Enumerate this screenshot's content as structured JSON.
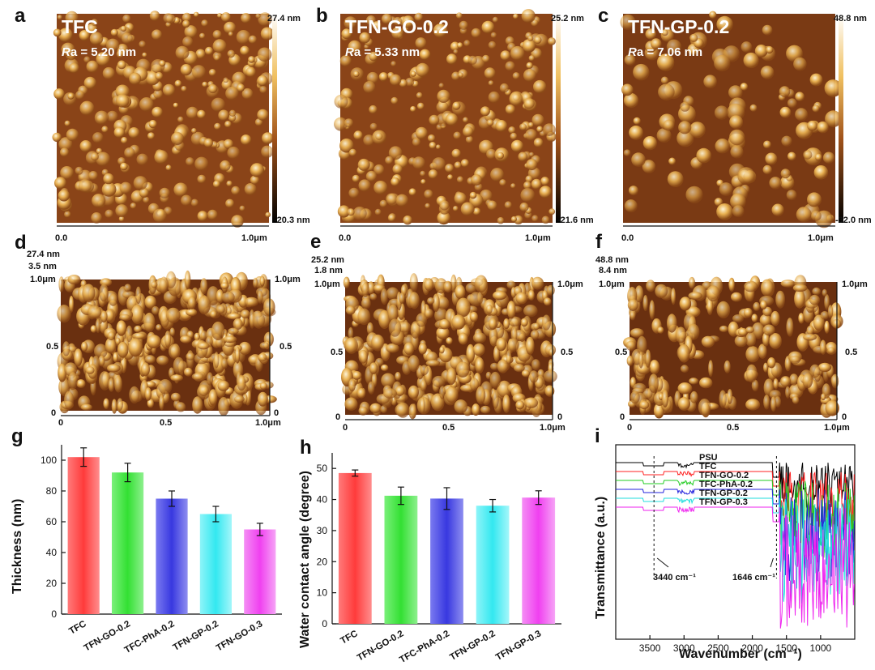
{
  "afm_2d": [
    {
      "letter": "a",
      "title": "TFC",
      "ra_prefix": "R",
      "ra_rest": "a = 5.20 nm",
      "cbar_max": "27.4 nm",
      "cbar_min": "-20.3 nm",
      "x_start": "0.0",
      "x_end": "1.0μm"
    },
    {
      "letter": "b",
      "title": "TFN-GO-0.2",
      "ra_prefix": "R",
      "ra_rest": "a = 5.33 nm",
      "cbar_max": "25.2 nm",
      "cbar_min": "-21.6 nm",
      "x_start": "0.0",
      "x_end": "1.0μm"
    },
    {
      "letter": "c",
      "title": "TFN-GP-0.2",
      "ra_prefix": "R",
      "ra_rest": "a = 7.06 nm",
      "cbar_max": "48.8 nm",
      "cbar_min": "-32.0 nm",
      "x_start": "0.0",
      "x_end": "1.0μm"
    }
  ],
  "afm_3d": [
    {
      "letter": "d",
      "z_max": "27.4 nm",
      "z_mid": "3.5 nm",
      "y_top": "1.0μm",
      "y_mid": "0.5",
      "y_zero": "0",
      "x_ticks": [
        "0",
        "0.5",
        "1.0μm"
      ],
      "r_top": "1.0μm",
      "r_mid": "0.5",
      "r_zero": "0"
    },
    {
      "letter": "e",
      "z_max": "25.2 nm",
      "z_mid": "1.8 nm",
      "y_top": "1.0μm",
      "y_mid": "0.5",
      "y_zero": "0",
      "x_ticks": [
        "0",
        "0.5",
        "1.0μm"
      ],
      "r_top": "1.0μm",
      "r_mid": "0.5",
      "r_zero": "0"
    },
    {
      "letter": "f",
      "z_max": "48.8 nm",
      "z_mid": "8.4 nm",
      "y_top": "1.0μm",
      "y_mid": "0.5",
      "y_zero": "0",
      "x_ticks": [
        "0",
        "0.5",
        "1.0μm"
      ],
      "r_top": "1.0μm",
      "r_mid": "0.5",
      "r_zero": "0"
    }
  ],
  "colors": {
    "afm_dark": "#2a1205",
    "afm_mid": "#a0521a",
    "afm_light": "#f0c060",
    "afm_peak": "#fff6d8",
    "bar_red": "#ff3b3b",
    "bar_green": "#33e033",
    "bar_blue": "#3838e0",
    "bar_cyan": "#33e8f0",
    "bar_magenta": "#f040f0"
  },
  "chart_data": [
    {
      "panel": "g",
      "type": "bar",
      "categories": [
        "TFC",
        "TFN-GO-0.2",
        "TFC-PhA-0.2",
        "TFN-GP-0.2",
        "TFN-GO-0.3"
      ],
      "values": [
        102,
        92,
        75,
        65,
        55
      ],
      "errors": [
        6,
        6,
        5,
        5,
        4
      ],
      "ylabel": "Thickness (nm)",
      "xlabel": "",
      "ylim": [
        0,
        110
      ],
      "yticks": [
        0,
        20,
        40,
        60,
        80,
        100
      ],
      "bar_colors": [
        "#ff3b3b",
        "#33e033",
        "#3838e0",
        "#33e8f0",
        "#f040f0"
      ]
    },
    {
      "panel": "h",
      "type": "bar",
      "categories": [
        "TFC",
        "TFN-GO-0.2",
        "TFC-PhA-0.2",
        "TFN-GP-0.2",
        "TFN-GP-0.3"
      ],
      "values": [
        48.5,
        41.2,
        40.3,
        38.0,
        40.6
      ],
      "errors": [
        1.0,
        2.8,
        3.5,
        2.0,
        2.2
      ],
      "ylabel": "Water contact angle (degree)",
      "xlabel": "",
      "ylim": [
        0,
        55
      ],
      "yticks": [
        0,
        10,
        20,
        30,
        40,
        50
      ],
      "bar_colors": [
        "#ff3b3b",
        "#33e033",
        "#3838e0",
        "#33e8f0",
        "#f040f0"
      ]
    },
    {
      "panel": "i",
      "type": "line",
      "title": "",
      "xlabel": "Wavenumber (cm⁻¹)",
      "ylabel": "Transmittance (a.u.)",
      "xlim": [
        4000,
        500
      ],
      "xticks": [
        3500,
        3000,
        2500,
        2000,
        1500,
        1000
      ],
      "series": [
        {
          "name": "PSU",
          "color": "#000000",
          "baseline": 100
        },
        {
          "name": "TFC",
          "color": "#ff2020",
          "baseline": 90
        },
        {
          "name": "TFN-GO-0.2",
          "color": "#22cc22",
          "baseline": 80
        },
        {
          "name": "TFC-PhA-0.2",
          "color": "#2222dd",
          "baseline": 70
        },
        {
          "name": "TFN-GP-0.2",
          "color": "#22dddd",
          "baseline": 60
        },
        {
          "name": "TFN-GP-0.3",
          "color": "#ee22ee",
          "baseline": 50
        }
      ],
      "annotations": [
        {
          "text": "3440 cm⁻¹",
          "x": 3440
        },
        {
          "text": "1646 cm⁻¹",
          "x": 1646
        }
      ]
    }
  ]
}
